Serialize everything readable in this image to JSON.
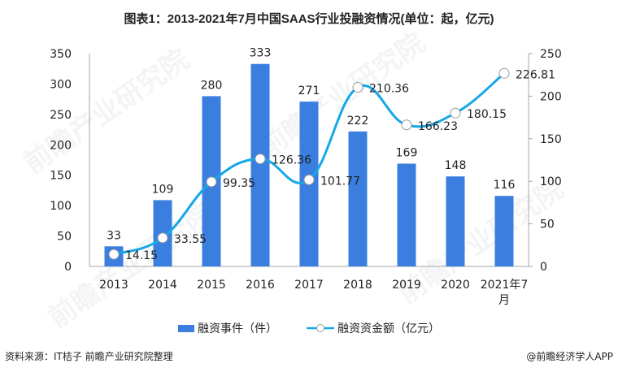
{
  "title": "图表1：2013-2021年7月中国SAAS行业投融资情况(单位：起，亿元)",
  "legend": {
    "bar_label": "融资事件（件）",
    "line_label": "融资资金额（亿元）"
  },
  "footer": {
    "source": "资料来源：IT桔子 前瞻产业研究院整理",
    "brand": "@前瞻经济学人APP"
  },
  "watermark": "前瞻产业研究院",
  "colors": {
    "bar": "#3a7fe0",
    "line": "#16a8e6",
    "marker_fill": "#ffffff",
    "marker_stroke": "#999999",
    "axis": "#a6a6a6"
  },
  "chart_data": {
    "type": "bar+line",
    "title": "图表1：2013-2021年7月中国SAAS行业投融资情况(单位：起，亿元)",
    "categories": [
      "2013",
      "2014",
      "2015",
      "2016",
      "2017",
      "2018",
      "2019",
      "2020",
      "2021年7月"
    ],
    "series": [
      {
        "name": "融资事件（件）",
        "type": "bar",
        "axis": "left",
        "values": [
          33,
          109,
          280,
          333,
          271,
          222,
          169,
          148,
          116
        ]
      },
      {
        "name": "融资资金额（亿元）",
        "type": "line",
        "axis": "right",
        "smooth": true,
        "values": [
          14.15,
          33.55,
          99.35,
          126.36,
          101.77,
          210.36,
          166.23,
          180.15,
          226.81
        ]
      }
    ],
    "left_axis": {
      "min": 0,
      "max": 350,
      "ticks": [
        0,
        50,
        100,
        150,
        200,
        250,
        300,
        350
      ]
    },
    "right_axis": {
      "min": 0,
      "max": 250,
      "ticks": [
        0,
        50,
        100,
        150,
        200,
        250
      ]
    },
    "xlabel": "",
    "ylabel": "",
    "grid": false,
    "legend_position": "bottom-center"
  }
}
